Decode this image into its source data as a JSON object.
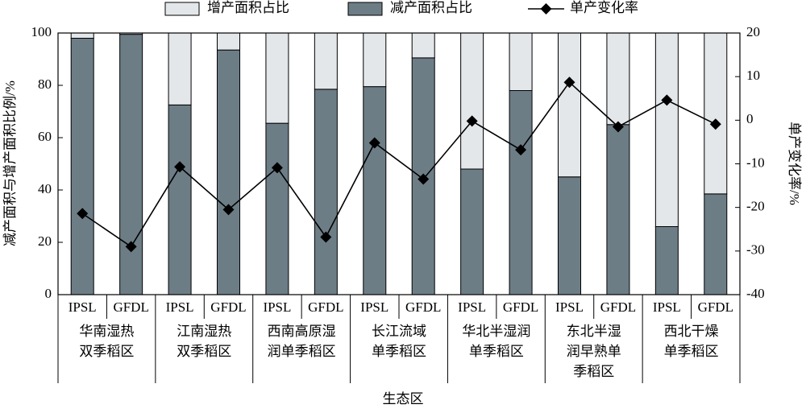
{
  "chart_data": {
    "type": "bar",
    "stacked": true,
    "categories": [
      "IPSL",
      "GFDL",
      "IPSL",
      "GFDL",
      "IPSL",
      "GFDL",
      "IPSL",
      "GFDL",
      "IPSL",
      "GFDL",
      "IPSL",
      "GFDL",
      "IPSL",
      "GFDL"
    ],
    "groups": [
      [
        "华南湿热",
        "双季稻区"
      ],
      [
        "江南湿热",
        "双季稻区"
      ],
      [
        "西南高原湿",
        "润单季稻区"
      ],
      [
        "长江流域",
        "单季稻区"
      ],
      [
        "华北半湿润",
        "单季稻区"
      ],
      [
        "东北半湿",
        "润早熟单",
        "季稻区"
      ],
      [
        "西北干燥",
        "单季稻区"
      ]
    ],
    "x_label": "生态区",
    "y_label": "减产面积与增产面积比例/%",
    "y2_label": "单产变化率/%",
    "ylim": [
      0,
      100
    ],
    "yticks": [
      0,
      20,
      40,
      60,
      80,
      100
    ],
    "y2lim": [
      -40,
      20
    ],
    "y2ticks": [
      -40,
      -30,
      -20,
      -10,
      0,
      10,
      20
    ],
    "series": [
      {
        "name": "增产面积占比",
        "color": "#e3e7e9",
        "values": [
          2,
          0.5,
          27.5,
          6.5,
          34.5,
          21.5,
          20.5,
          9.5,
          52,
          22,
          55,
          35,
          74,
          61.5
        ]
      },
      {
        "name": "减产面积占比",
        "color": "#6d7d86",
        "values": [
          98,
          99.5,
          72.5,
          93.5,
          65.5,
          78.5,
          79.5,
          90.5,
          48,
          78,
          45,
          65,
          26,
          38.5
        ]
      },
      {
        "name": "单产变化率",
        "type": "line",
        "axis": "y2",
        "color": "#000000",
        "values": [
          -21.4,
          -29,
          -10.7,
          -20.5,
          -10.9,
          -26.8,
          -5.2,
          -13.5,
          -0.2,
          -6.8,
          8.7,
          -1.5,
          4.6,
          -0.9
        ]
      }
    ]
  }
}
